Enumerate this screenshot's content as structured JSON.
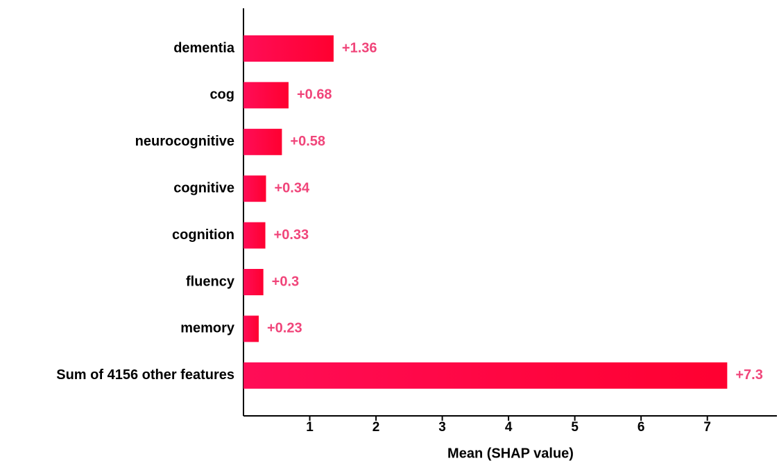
{
  "chart_data": {
    "type": "barh",
    "x_label": "Mean (SHAP value)",
    "categories": [
      "dementia",
      "cog",
      "neurocognitive",
      "cognitive",
      "cognition",
      "fluency",
      "memory",
      "Sum of 4156 other features"
    ],
    "values": [
      1.36,
      0.68,
      0.58,
      0.34,
      0.33,
      0.3,
      0.23,
      7.3
    ],
    "value_labels": [
      "+1.36",
      "+0.68",
      "+0.58",
      "+0.34",
      "+0.33",
      "+0.3",
      "+0.23",
      "+7.3"
    ],
    "color": "#ff0d57",
    "label_color": "#f0457a",
    "xlim": [
      0,
      8.05
    ],
    "xticks": [
      1,
      2,
      3,
      4,
      5,
      6,
      7
    ]
  }
}
